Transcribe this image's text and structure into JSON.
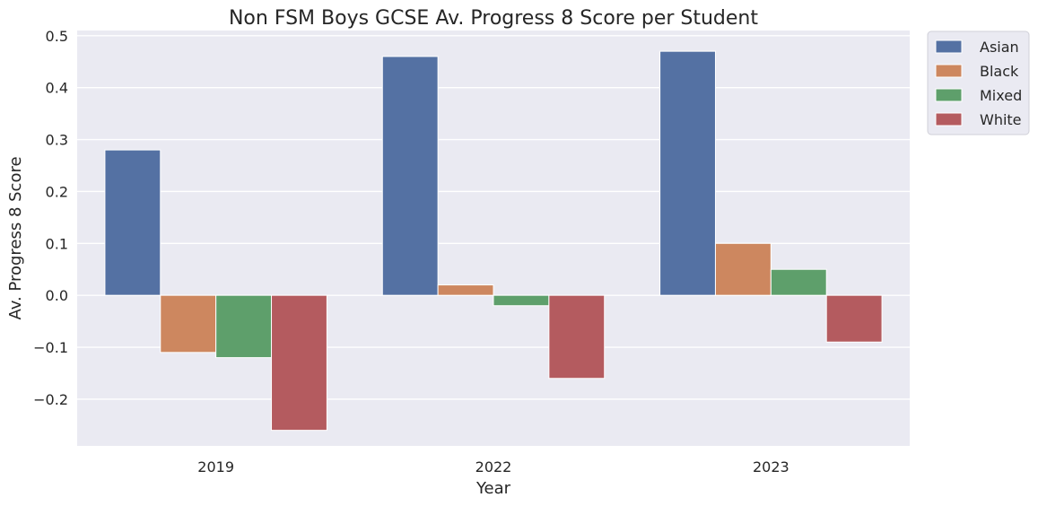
{
  "chart_data": {
    "type": "bar",
    "title": "Non FSM Boys GCSE Av. Progress 8 Score per Student",
    "xlabel": "Year",
    "ylabel": "Av. Progress 8 Score",
    "categories": [
      "2019",
      "2022",
      "2023"
    ],
    "series": [
      {
        "name": "Asian",
        "color": "#5471a3",
        "values": [
          0.28,
          0.46,
          0.47
        ]
      },
      {
        "name": "Black",
        "color": "#cd875f",
        "values": [
          -0.11,
          0.02,
          0.1
        ]
      },
      {
        "name": "Mixed",
        "color": "#5e9f6b",
        "values": [
          -0.12,
          -0.02,
          0.05
        ]
      },
      {
        "name": "White",
        "color": "#b45b5f",
        "values": [
          -0.26,
          -0.16,
          -0.09
        ]
      }
    ],
    "ylim": [
      -0.29,
      0.51
    ],
    "yticks": [
      -0.2,
      -0.1,
      0.0,
      0.1,
      0.2,
      0.3,
      0.4,
      0.5
    ],
    "ytick_labels": [
      "−0.2",
      "−0.1",
      "0.0",
      "0.1",
      "0.2",
      "0.3",
      "0.4",
      "0.5"
    ],
    "grid": true,
    "legend": "outside-top-right",
    "background_color": "#eaeaf2",
    "grid_color": "#ffffff"
  }
}
